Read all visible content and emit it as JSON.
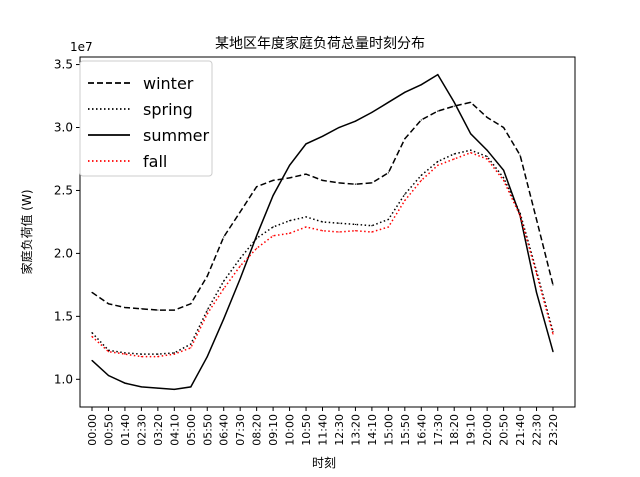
{
  "chart_data": {
    "type": "line",
    "title": "某地区年度家庭负荷总量时刻分布",
    "xlabel": "时刻",
    "ylabel": "家庭负荷值 (W)",
    "y_offset_label": "1e7",
    "ylim": [
      0.78,
      3.56
    ],
    "y_unit_multiplier": 10000000,
    "yticks": [
      1.0,
      1.5,
      2.0,
      2.5,
      3.0,
      3.5
    ],
    "ytick_labels": [
      "1.0",
      "1.5",
      "2.0",
      "2.5",
      "3.0",
      "3.5"
    ],
    "x": [
      "00:00",
      "00:50",
      "01:40",
      "02:30",
      "03:20",
      "04:10",
      "05:00",
      "05:50",
      "06:40",
      "07:30",
      "08:20",
      "09:10",
      "10:00",
      "10:50",
      "11:40",
      "12:30",
      "13:20",
      "14:10",
      "15:00",
      "15:50",
      "16:40",
      "17:30",
      "18:20",
      "19:10",
      "20:00",
      "20:50",
      "21:40",
      "22:30",
      "23:20"
    ],
    "grid": false,
    "legend_position": "top-left",
    "series": [
      {
        "name": "winter",
        "style": "dashed",
        "color": "#000000",
        "values": [
          1.69,
          1.6,
          1.57,
          1.56,
          1.55,
          1.55,
          1.6,
          1.82,
          2.13,
          2.33,
          2.53,
          2.58,
          2.6,
          2.63,
          2.58,
          2.56,
          2.55,
          2.56,
          2.64,
          2.91,
          3.06,
          3.13,
          3.17,
          3.2,
          3.08,
          3.0,
          2.78,
          2.27,
          1.75
        ]
      },
      {
        "name": "spring",
        "style": "dotted",
        "color": "#000000",
        "values": [
          1.37,
          1.23,
          1.21,
          1.2,
          1.2,
          1.21,
          1.28,
          1.55,
          1.78,
          1.96,
          2.12,
          2.21,
          2.26,
          2.29,
          2.25,
          2.24,
          2.23,
          2.22,
          2.27,
          2.47,
          2.62,
          2.73,
          2.79,
          2.82,
          2.77,
          2.6,
          2.32,
          1.86,
          1.38
        ]
      },
      {
        "name": "summer",
        "style": "solid",
        "color": "#000000",
        "values": [
          1.15,
          1.03,
          0.97,
          0.94,
          0.93,
          0.92,
          0.94,
          1.18,
          1.48,
          1.8,
          2.14,
          2.46,
          2.7,
          2.87,
          2.93,
          3.0,
          3.05,
          3.12,
          3.2,
          3.28,
          3.34,
          3.42,
          3.2,
          2.95,
          2.82,
          2.66,
          2.3,
          1.69,
          1.22
        ]
      },
      {
        "name": "fall",
        "style": "dotted",
        "color": "#ff0000",
        "values": [
          1.34,
          1.22,
          1.2,
          1.18,
          1.18,
          1.2,
          1.25,
          1.52,
          1.72,
          1.9,
          2.04,
          2.14,
          2.16,
          2.21,
          2.18,
          2.17,
          2.18,
          2.17,
          2.21,
          2.42,
          2.58,
          2.7,
          2.75,
          2.8,
          2.75,
          2.58,
          2.3,
          1.84,
          1.36
        ]
      }
    ]
  }
}
